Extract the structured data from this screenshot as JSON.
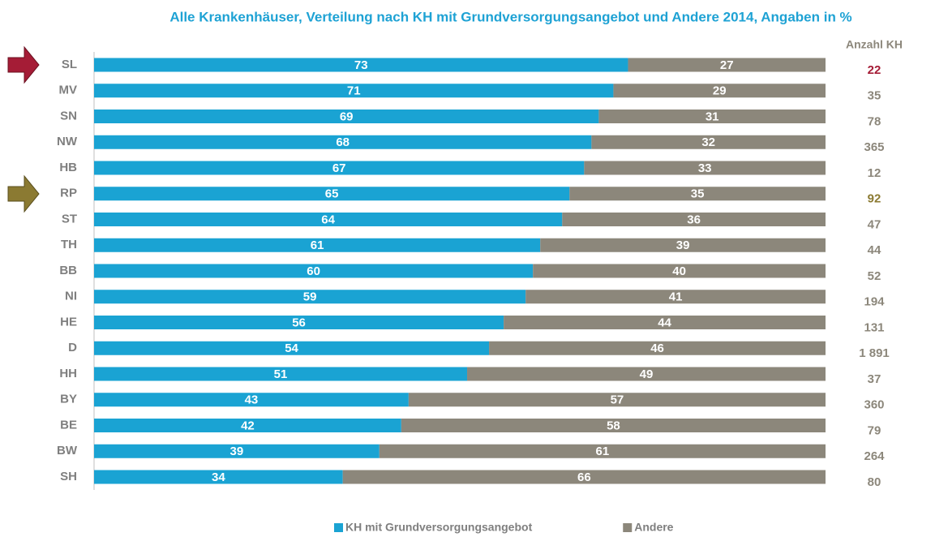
{
  "chart_data": {
    "type": "stacked_bar_horizontal",
    "title": "Alle Krankenhäuser, Verteilung nach KH mit Grundversorgungsangebot und Andere 2014, Angaben in %",
    "categories": [
      "SL",
      "MV",
      "SN",
      "NW",
      "HB",
      "RP",
      "ST",
      "TH",
      "BB",
      "NI",
      "HE",
      "D",
      "HH",
      "BY",
      "BE",
      "BW",
      "SH"
    ],
    "series": [
      {
        "name": "KH mit Grundversorgungsangebot",
        "color": "#1aa3d3",
        "values": [
          73,
          71,
          69,
          68,
          67,
          65,
          64,
          61,
          60,
          59,
          56,
          54,
          51,
          43,
          42,
          39,
          34
        ]
      },
      {
        "name": "Andere",
        "color": "#8c877b",
        "values": [
          27,
          29,
          31,
          32,
          33,
          35,
          36,
          39,
          40,
          41,
          44,
          46,
          49,
          57,
          58,
          61,
          66
        ]
      }
    ],
    "xlim": [
      0,
      100
    ],
    "legend": "bottom",
    "count_column": {
      "label": "Anzahl KH",
      "values": [
        22,
        35,
        78,
        365,
        12,
        92,
        47,
        44,
        52,
        194,
        131,
        1891,
        37,
        360,
        79,
        264,
        80
      ],
      "value_labels": [
        "22",
        "35",
        "78",
        "365",
        "12",
        "92",
        "47",
        "44",
        "52",
        "194",
        "131",
        "1 891",
        "37",
        "360",
        "79",
        "264",
        "80"
      ],
      "colors": [
        "#a51c36",
        "#8c877b",
        "#8c877b",
        "#8c877b",
        "#8c877b",
        "#8b7a32",
        "#8c877b",
        "#8c877b",
        "#8c877b",
        "#8c877b",
        "#8c877b",
        "#8c877b",
        "#8c877b",
        "#8c877b",
        "#8c877b",
        "#8c877b",
        "#8c877b"
      ]
    }
  }
}
